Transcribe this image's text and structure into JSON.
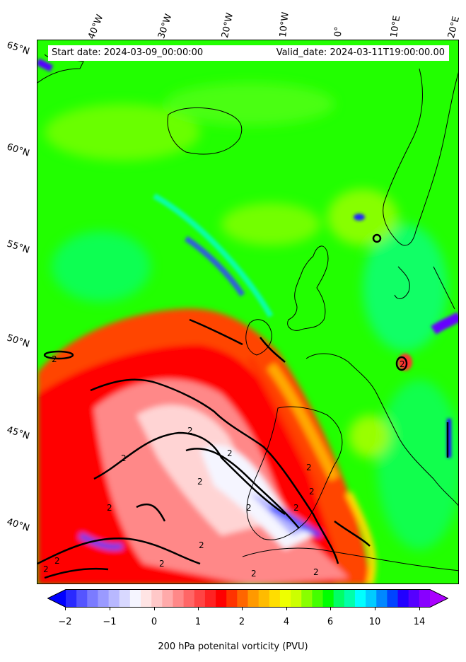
{
  "map": {
    "start_date": "Start date: 2024-03-09_00:00:00",
    "valid_date": "Valid_date: 2024-03-11T19:00:00.00",
    "lon_labels": [
      "40°W",
      "30°W",
      "20°W",
      "10°W",
      "0°",
      "10°E",
      "20°E"
    ],
    "lat_labels": [
      "65°N",
      "60°N",
      "55°N",
      "50°N",
      "45°N",
      "40°N"
    ],
    "contour_label": "2"
  },
  "colorbar": {
    "tick_labels": [
      "−2",
      "−1",
      "0",
      "1",
      "2",
      "4",
      "6",
      "10",
      "14"
    ],
    "label": "200 hPa potenital vorticity (PVU)",
    "colors": [
      "#0000ff",
      "#2a2aff",
      "#5555ff",
      "#7b7bff",
      "#9a9aff",
      "#b8b8ff",
      "#d8d8ff",
      "#f5f5ff",
      "#ffe4e4",
      "#ffc8c8",
      "#ffaaaa",
      "#ff8888",
      "#ff6666",
      "#ff4444",
      "#ff2222",
      "#ff0000",
      "#ff3300",
      "#ff6600",
      "#ff9900",
      "#ffbb00",
      "#ffdd00",
      "#eeff00",
      "#ccff00",
      "#88ff00",
      "#44ff00",
      "#00ff00",
      "#00ff66",
      "#00ffaa",
      "#00ffff",
      "#00ccff",
      "#0088ff",
      "#0044ff",
      "#2200ff",
      "#5500ff",
      "#8800ff",
      "#aa00ff"
    ]
  }
}
